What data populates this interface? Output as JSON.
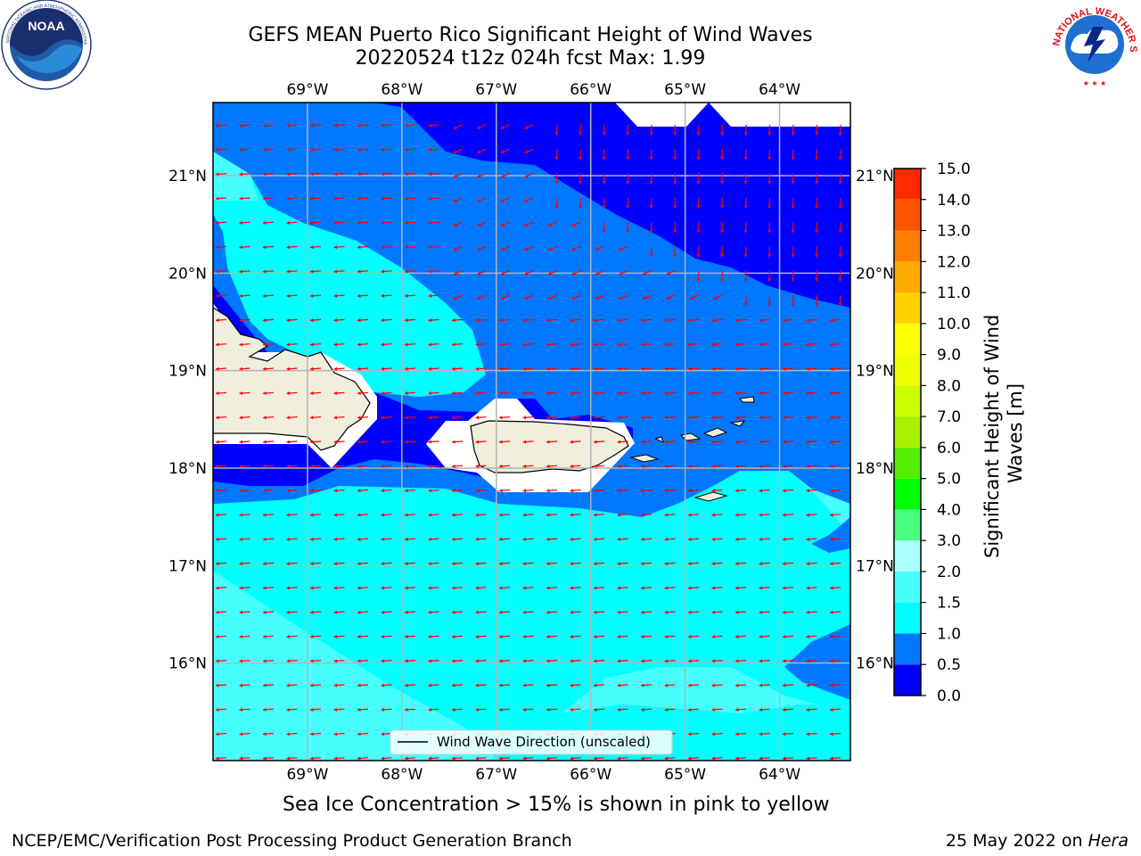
{
  "title": {
    "line1": "GEFS MEAN Puerto Rico Significant Height of Wind Waves",
    "line2": "20220524 t12z 024h fcst   Max: 1.99"
  },
  "logos": {
    "noaa": {
      "text": "NOAA",
      "ring_text": "NATIONAL OCEANIC AND ATMOSPHERIC ADMINISTRATION · U.S. DEPARTMENT OF COMMERCE"
    },
    "nws": {
      "ring_text": "NATIONAL WEATHER SERVICE"
    }
  },
  "map": {
    "lon_ticks": [
      "69°W",
      "68°W",
      "67°W",
      "66°W",
      "65°W",
      "64°W"
    ],
    "lon_values": [
      -69,
      -68,
      -67,
      -66,
      -65,
      -64
    ],
    "lat_ticks": [
      "21°N",
      "20°N",
      "19°N",
      "18°N",
      "17°N",
      "16°N"
    ],
    "lat_values": [
      21,
      20,
      19,
      18,
      17,
      16
    ],
    "lon_range": [
      -70.0,
      -63.25
    ],
    "lat_range": [
      15.0,
      21.75
    ],
    "legend_label": "Wind Wave Direction (unscaled)",
    "arrow_color": "#ff0000",
    "land_color": "#efeedc",
    "prevailing_wind_direction": "west (toward)"
  },
  "colorbar": {
    "label": "Significant Height of Wind Waves [m]",
    "label_line1": "Significant Height of Wind",
    "label_line2": "Waves [m]",
    "levels": [
      "0.0",
      "0.5",
      "1.0",
      "1.5",
      "2.0",
      "3.0",
      "4.0",
      "5.0",
      "6.0",
      "7.0",
      "8.0",
      "9.0",
      "10.0",
      "11.0",
      "12.0",
      "13.0",
      "14.0",
      "15.0"
    ],
    "colors": [
      "#0000ff",
      "#0077ff",
      "#00ffff",
      "#48ffff",
      "#aaffff",
      "#48ff7f",
      "#00ff00",
      "#55ee00",
      "#aaee00",
      "#ccff00",
      "#eeff00",
      "#ffff00",
      "#ffd200",
      "#ffaa00",
      "#ff8000",
      "#ff5500",
      "#ff2a00",
      "#ff0000"
    ]
  },
  "subcaption": "Sea Ice Concentration > 15% is shown in pink to yellow",
  "footer": {
    "left": "NCEP/EMC/Verification Post Processing Product Generation Branch",
    "right_prefix": "25 May 2022 on ",
    "right_machine": "Hera"
  }
}
